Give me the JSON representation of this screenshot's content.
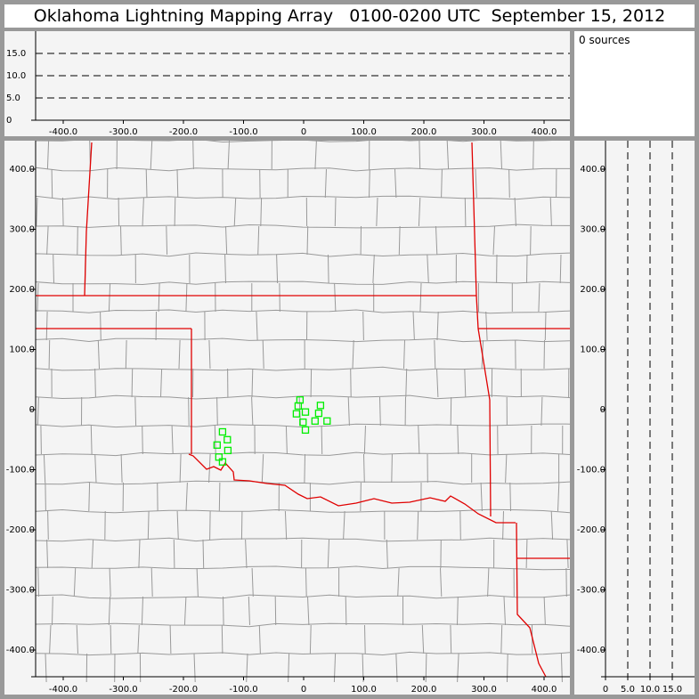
{
  "title": "Oklahoma Lightning Mapping Array   0100-0200 UTC  September 15, 2012",
  "sources_label": "0 sources",
  "colors": {
    "state_border": "#e00000",
    "county_line": "#999999",
    "station": "#00ee00",
    "panel_bg": "#f4f4f4",
    "frame": "#999999"
  },
  "chart_data": {
    "type": "scatter",
    "panels": [
      {
        "name": "altitude-vs-x",
        "xlim": [
          -445,
          443
        ],
        "ylim": [
          0,
          20
        ],
        "xticks": [
          "-400.0",
          "-300.0",
          "-200.0",
          "-100.0",
          "0",
          "100.0",
          "200.0",
          "300.0",
          "400.0"
        ],
        "xtick_values": [
          -400,
          -300,
          -200,
          -100,
          0,
          100,
          200,
          300,
          400
        ],
        "yticks": [
          "0",
          "5.0",
          "10.0",
          "15.0"
        ],
        "ytick_values": [
          0,
          5,
          10,
          15
        ],
        "grid": "dashed horizontal at 5, 10, 15"
      },
      {
        "name": "plan-view-map",
        "xlim": [
          -445,
          443
        ],
        "ylim": [
          -444,
          447
        ],
        "xticks": [
          "-400.0",
          "-300.0",
          "-200.0",
          "-100.0",
          "0",
          "100.0",
          "200.0",
          "300.0",
          "400.0"
        ],
        "xtick_values": [
          -400,
          -300,
          -200,
          -100,
          0,
          100,
          200,
          300,
          400
        ],
        "yticks": [
          "400.0",
          "300.0",
          "200.0",
          "100.0",
          "0",
          "-100.0",
          "-200.0",
          "-300.0",
          "-400.0"
        ],
        "ytick_values": [
          400,
          300,
          200,
          100,
          0,
          -100,
          -200,
          -300,
          -400
        ]
      },
      {
        "name": "altitude-vs-y",
        "xlim": [
          0,
          20
        ],
        "ylim": [
          -444,
          447
        ],
        "xticks": [
          "0",
          "5.0",
          "10.0",
          "15.0"
        ],
        "xtick_values": [
          0,
          5,
          10,
          15
        ],
        "yticks": [
          "400.0",
          "300.0",
          "200.0",
          "100.0",
          "0",
          "-100.0",
          "-200.0",
          "-300.0",
          "-400.0"
        ],
        "ytick_values": [
          400,
          300,
          200,
          100,
          0,
          -100,
          -200,
          -300,
          -400
        ],
        "grid": "dashed vertical at 5, 10, 15"
      }
    ],
    "sources": [],
    "stations": [
      [
        -6,
        16
      ],
      [
        -9,
        6
      ],
      [
        28,
        7
      ],
      [
        -12,
        -7
      ],
      [
        3,
        -4
      ],
      [
        25,
        -6
      ],
      [
        -1,
        -21
      ],
      [
        19,
        -19
      ],
      [
        39,
        -19
      ],
      [
        3,
        -34
      ],
      [
        -135,
        -37
      ],
      [
        -127,
        -50
      ],
      [
        -144,
        -59
      ],
      [
        -126,
        -68
      ],
      [
        -141,
        -79
      ],
      [
        -135,
        -87
      ]
    ]
  }
}
